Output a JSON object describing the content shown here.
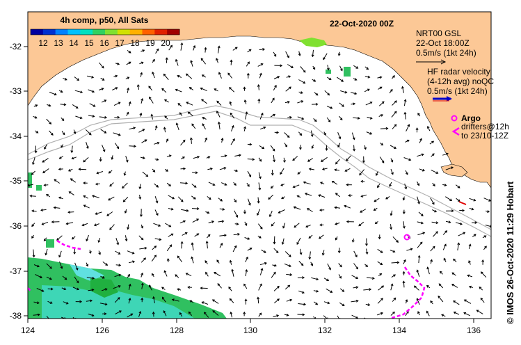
{
  "map": {
    "date_title": "22-Oct-2020 00Z",
    "colorbar": {
      "title": "4h comp, p50, All Sats",
      "ticks": [
        "12",
        "13",
        "14",
        "15",
        "16",
        "17",
        "18",
        "19",
        "20"
      ],
      "colors": [
        "#0000a0",
        "#0030d0",
        "#0080ff",
        "#00c0ff",
        "#00e0c0",
        "#30d060",
        "#80e030",
        "#d0e000",
        "#ffb000",
        "#ff6000",
        "#e02000",
        "#a00000"
      ]
    },
    "legend": {
      "model": [
        "NRT00 GSL",
        "22-Oct 18:00Z",
        "0.5m/s (1kt 24h)"
      ],
      "hf_radar": [
        "HF radar velocity",
        "(4-12h avg) noQC",
        "0.5m/s (1kt 24h)"
      ],
      "argo": [
        "Argo",
        "drifters@12h",
        "to 23/10-12Z"
      ]
    },
    "side_label": "© IMOS 26-Oct-2020 11:29 Hobart",
    "lat_ticks": [
      "-32",
      "-33",
      "-34",
      "-35",
      "-36",
      "-37",
      "-38"
    ],
    "lon_ticks": [
      "124",
      "126",
      "128",
      "130",
      "132",
      "134",
      "136"
    ],
    "colors": {
      "land": "#fcc896",
      "ocean": "#ffffff",
      "isobath": "#b0b0b0",
      "drifter": "#ff00ff",
      "radar_arrow": "#0000c8"
    }
  }
}
